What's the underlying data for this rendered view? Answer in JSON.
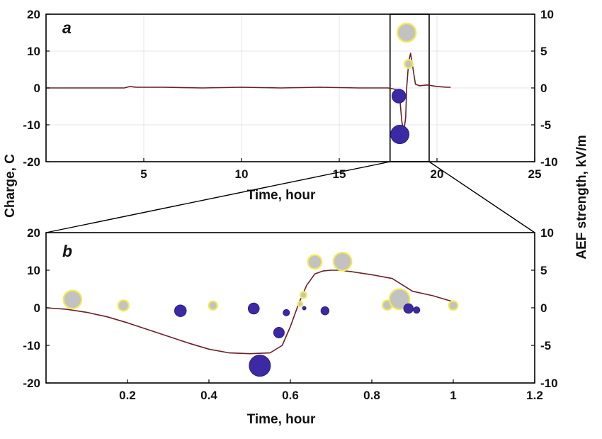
{
  "chart_data": [
    {
      "panel": "a",
      "type": "scatter",
      "xlabel": "Time, hour",
      "ylabel_left": "Charge, C",
      "ylabel_right": "AEF strength, kV/m",
      "xlim": [
        0,
        25
      ],
      "ylim_left": [
        -20,
        20
      ],
      "ylim_right": [
        -10,
        10
      ],
      "xticks": [
        5,
        10,
        15,
        20,
        25
      ],
      "yticks_left": [
        20,
        10,
        0,
        -10,
        -20
      ],
      "yticks_right": [
        10,
        5,
        0,
        -5,
        -10
      ],
      "grid": true,
      "inset_box": {
        "x": [
          17.6,
          19.6
        ],
        "y_left": [
          -20,
          20
        ]
      },
      "aef_line": {
        "units": "kV/m",
        "color": "#6b1f26",
        "x": [
          0,
          2,
          4,
          4.3,
          4.6,
          6,
          8,
          10,
          12,
          14,
          16,
          17.5,
          17.9,
          18.1,
          18.2,
          18.3,
          18.4,
          18.45,
          18.55,
          18.65,
          18.75,
          18.9,
          19.1,
          19.5,
          20.0,
          20.5,
          20.7
        ],
        "y": [
          0,
          0,
          0,
          0.2,
          0.1,
          0.1,
          0,
          0.1,
          0,
          0.1,
          0,
          0,
          -0.2,
          -1.5,
          -4.5,
          -6.0,
          -4.0,
          0,
          3.5,
          4.7,
          3.0,
          0.5,
          0.3,
          0.4,
          0.2,
          0.1,
          0.1
        ]
      },
      "charges": [
        {
          "x": 18.45,
          "y": 15,
          "sign": "positive",
          "size": 1.0
        },
        {
          "x": 18.55,
          "y": 6.5,
          "sign": "positive",
          "size": 0.45
        },
        {
          "x": 18.05,
          "y": -2.2,
          "sign": "negative",
          "size": 0.75
        },
        {
          "x": 18.1,
          "y": -12.6,
          "sign": "negative",
          "size": 1.0
        }
      ]
    },
    {
      "panel": "b",
      "type": "scatter",
      "xlabel": "Time, hour",
      "ylabel_left": "",
      "ylabel_right": "",
      "xlim": [
        0,
        1.2
      ],
      "ylim_left": [
        -20,
        20
      ],
      "ylim_right": [
        -10,
        10
      ],
      "xticks": [
        0.2,
        0.4,
        0.6,
        0.8,
        1,
        1.2
      ],
      "xtick_labels": [
        "0.2",
        "0.4",
        "0.6",
        "0.8",
        "1",
        "1.2"
      ],
      "yticks_left": [
        20,
        10,
        0,
        -10,
        -20
      ],
      "yticks_right": [
        10,
        5,
        0,
        -5,
        -10
      ],
      "grid": false,
      "aef_line": {
        "units": "kV/m",
        "color": "#6b1f26",
        "x": [
          0,
          0.05,
          0.1,
          0.15,
          0.2,
          0.25,
          0.3,
          0.35,
          0.4,
          0.45,
          0.5,
          0.55,
          0.58,
          0.6,
          0.62,
          0.64,
          0.66,
          0.68,
          0.7,
          0.72,
          0.75,
          0.8,
          0.85,
          0.9,
          0.95,
          1.0
        ],
        "y": [
          0,
          -0.2,
          -0.6,
          -1.2,
          -2.0,
          -2.9,
          -3.8,
          -4.7,
          -5.5,
          -6.0,
          -6.1,
          -6.0,
          -5.0,
          -2.5,
          0.5,
          3.0,
          4.5,
          4.9,
          5.0,
          5.0,
          4.8,
          4.4,
          3.9,
          2.2,
          1.6,
          0.8
        ]
      },
      "charges": [
        {
          "x": 0.065,
          "y": 2.2,
          "sign": "positive",
          "size": 0.85
        },
        {
          "x": 0.19,
          "y": 0.6,
          "sign": "positive",
          "size": 0.5
        },
        {
          "x": 0.41,
          "y": 0.6,
          "sign": "positive",
          "size": 0.4
        },
        {
          "x": 0.66,
          "y": 12.2,
          "sign": "positive",
          "size": 0.65
        },
        {
          "x": 0.728,
          "y": 12.3,
          "sign": "positive",
          "size": 0.85
        },
        {
          "x": 0.632,
          "y": 3.4,
          "sign": "positive",
          "size": 0.3
        },
        {
          "x": 0.624,
          "y": 1.0,
          "sign": "positive",
          "size": 0.22
        },
        {
          "x": 0.838,
          "y": 0.7,
          "sign": "positive",
          "size": 0.45
        },
        {
          "x": 0.868,
          "y": 2.3,
          "sign": "positive",
          "size": 0.95
        },
        {
          "x": 1.0,
          "y": 0.6,
          "sign": "positive",
          "size": 0.42
        },
        {
          "x": 0.33,
          "y": -0.8,
          "sign": "negative",
          "size": 0.55
        },
        {
          "x": 0.51,
          "y": -0.2,
          "sign": "negative",
          "size": 0.52
        },
        {
          "x": 0.525,
          "y": -15.4,
          "sign": "negative",
          "size": 1.0
        },
        {
          "x": 0.572,
          "y": -6.6,
          "sign": "negative",
          "size": 0.5
        },
        {
          "x": 0.59,
          "y": -1.3,
          "sign": "negative",
          "size": 0.3
        },
        {
          "x": 0.634,
          "y": -0.1,
          "sign": "negative",
          "size": 0.15
        },
        {
          "x": 0.685,
          "y": -0.8,
          "sign": "negative",
          "size": 0.38
        },
        {
          "x": 0.89,
          "y": -0.2,
          "sign": "negative",
          "size": 0.45
        },
        {
          "x": 0.91,
          "y": -0.6,
          "sign": "negative",
          "size": 0.3
        }
      ]
    }
  ],
  "colors": {
    "positive_fill": "#c2c2c2",
    "positive_edge": "#f2ea52",
    "negative_fill": "#3b2aa3",
    "negative_edge": "#2a1d85",
    "aef_line": "#6b1f26",
    "grid": "#e4e4e4",
    "axes": "#000000"
  }
}
